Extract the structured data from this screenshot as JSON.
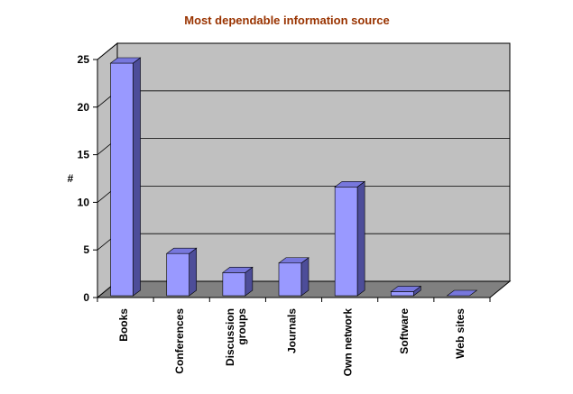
{
  "chart_data": {
    "type": "bar",
    "title": "Most dependable information source",
    "xlabel": "",
    "ylabel": "#",
    "categories": [
      "Books",
      "Conferences",
      "Discussion groups",
      "Journals",
      "Own network",
      "Software",
      "Web sites"
    ],
    "category_lines": [
      [
        "Books"
      ],
      [
        "Conferences"
      ],
      [
        "Discussion",
        "groups"
      ],
      [
        "Journals"
      ],
      [
        "Own network"
      ],
      [
        "Software"
      ],
      [
        "Web sites"
      ]
    ],
    "values": [
      25,
      5,
      3,
      4,
      12,
      1,
      0
    ],
    "ylim": [
      0,
      25
    ],
    "yticks": [
      0,
      5,
      10,
      15,
      20,
      25
    ],
    "grid": true,
    "style": "3d",
    "colors": {
      "bar_front": "#9999ff",
      "bar_top": "#7777dd",
      "bar_side": "#4d4d99",
      "wall": "#c0c0c0",
      "floor": "#808080",
      "gridline": "#000000",
      "title": "#993300"
    }
  }
}
